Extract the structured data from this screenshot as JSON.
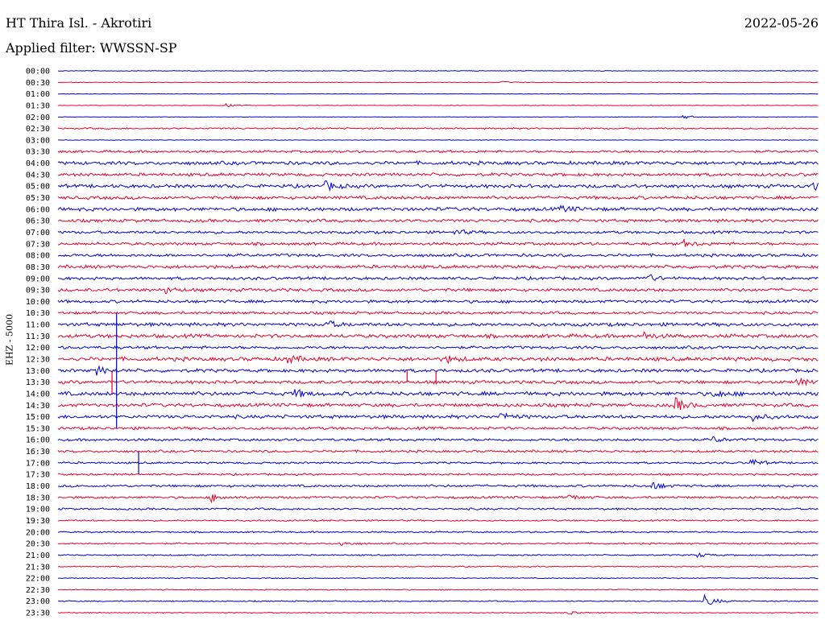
{
  "header": {
    "station": "HT Thira Isl. - Akrotiri",
    "date": "2022-05-26",
    "filter_label": "Applied filter: WWSSN-SP",
    "channel_label": "EHZ - 5000"
  },
  "colors": {
    "even_trace": "#0000d0",
    "odd_trace": "#e8002a"
  },
  "chart_data": {
    "type": "line",
    "title": "HT Thira Isl. - Akrotiri",
    "ylabel": "EHZ - 5000",
    "row_labels": [
      "00:00",
      "00:30",
      "01:00",
      "01:30",
      "02:00",
      "02:30",
      "03:00",
      "03:30",
      "04:00",
      "04:30",
      "05:00",
      "05:30",
      "06:00",
      "06:30",
      "07:00",
      "07:30",
      "08:00",
      "08:30",
      "09:00",
      "09:30",
      "10:00",
      "10:30",
      "11:00",
      "11:30",
      "12:00",
      "12:30",
      "13:00",
      "13:30",
      "14:00",
      "14:30",
      "15:00",
      "15:30",
      "16:00",
      "16:30",
      "17:00",
      "17:30",
      "18:00",
      "18:30",
      "19:00",
      "19:30",
      "20:00",
      "20:30",
      "21:00",
      "21:30",
      "22:00",
      "22:30",
      "23:00",
      "23:30"
    ],
    "noise_level": [
      0.4,
      0.3,
      0.2,
      0.3,
      0.2,
      0.8,
      0.3,
      1.2,
      1.8,
      1.6,
      1.8,
      1.7,
      1.8,
      1.6,
      1.4,
      1.5,
      1.5,
      1.7,
      1.5,
      1.6,
      1.5,
      1.4,
      1.8,
      1.9,
      1.5,
      2.0,
      1.7,
      1.7,
      2.0,
      1.8,
      1.8,
      1.4,
      1.3,
      1.2,
      1.0,
      1.0,
      1.2,
      1.2,
      1.0,
      0.8,
      0.8,
      0.8,
      0.7,
      0.6,
      0.5,
      0.5,
      0.6,
      0.5
    ],
    "events": [
      {
        "row": 1,
        "t": 0.58,
        "amp": 2
      },
      {
        "row": 3,
        "t": 0.22,
        "amp": 2
      },
      {
        "row": 4,
        "t": 0.82,
        "amp": 3
      },
      {
        "row": 10,
        "t": 0.35,
        "amp": 6
      },
      {
        "row": 10,
        "t": 0.99,
        "amp": 5
      },
      {
        "row": 12,
        "t": 0.66,
        "amp": 4
      },
      {
        "row": 14,
        "t": 0.52,
        "amp": 4
      },
      {
        "row": 15,
        "t": 0.82,
        "amp": 5
      },
      {
        "row": 18,
        "t": 0.77,
        "amp": 6
      },
      {
        "row": 19,
        "t": 0.14,
        "amp": 4
      },
      {
        "row": 22,
        "t": 0.35,
        "amp": 5
      },
      {
        "row": 23,
        "t": 0.77,
        "amp": 4
      },
      {
        "row": 25,
        "t": 0.3,
        "amp": 5
      },
      {
        "row": 25,
        "t": 0.51,
        "amp": 4
      },
      {
        "row": 26,
        "t": 0.05,
        "amp": 5
      },
      {
        "row": 27,
        "t": 0.97,
        "amp": 5
      },
      {
        "row": 28,
        "t": 0.31,
        "amp": 5
      },
      {
        "row": 28,
        "t": 0.86,
        "amp": 5
      },
      {
        "row": 29,
        "t": 0.81,
        "amp": 9
      },
      {
        "row": 30,
        "t": 0.58,
        "amp": 6
      },
      {
        "row": 30,
        "t": 0.91,
        "amp": 5
      },
      {
        "row": 32,
        "t": 0.86,
        "amp": 4
      },
      {
        "row": 34,
        "t": 0.91,
        "amp": 5
      },
      {
        "row": 36,
        "t": 0.78,
        "amp": 5
      },
      {
        "row": 37,
        "t": 0.2,
        "amp": 5
      },
      {
        "row": 37,
        "t": 0.67,
        "amp": 4
      },
      {
        "row": 41,
        "t": 0.37,
        "amp": 3
      },
      {
        "row": 42,
        "t": 0.84,
        "amp": 3
      },
      {
        "row": 46,
        "t": 0.85,
        "amp": 7
      },
      {
        "row": 47,
        "t": 0.67,
        "amp": 3
      }
    ],
    "spikes": [
      {
        "t": 0.077,
        "from_row": 21,
        "to_row": 31
      },
      {
        "t": 0.071,
        "from_row": 26,
        "to_row": 28
      },
      {
        "t": 0.459,
        "from_row": 26,
        "to_row": 27
      },
      {
        "t": 0.497,
        "from_row": 26,
        "to_row": 27
      },
      {
        "t": 0.106,
        "from_row": 33,
        "to_row": 35
      }
    ],
    "grid": false
  }
}
